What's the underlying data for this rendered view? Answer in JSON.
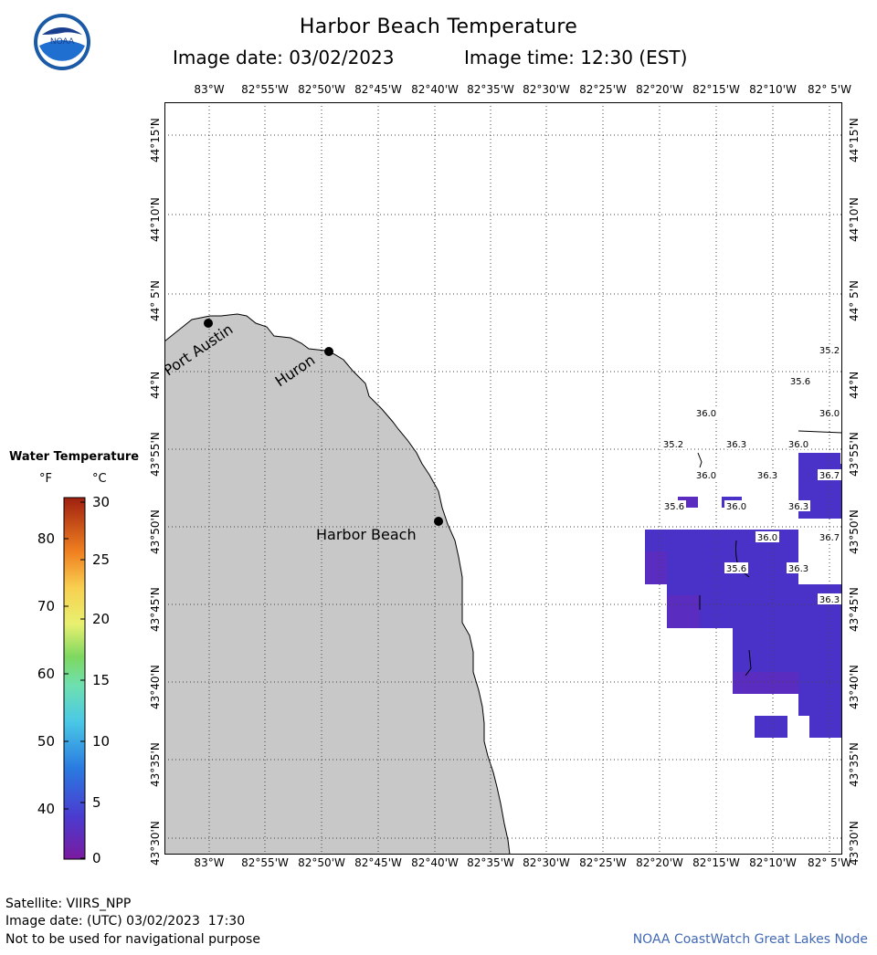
{
  "header": {
    "title": "Harbor Beach Temperature",
    "image_date": "Image date: 03/02/2023",
    "image_time": "Image time: 12:30 (EST)",
    "logo_text": "NOAA"
  },
  "map": {
    "lon_labels": [
      "83°W",
      "82°55'W",
      "82°50'W",
      "82°45'W",
      "82°40'W",
      "82°35'W",
      "82°30'W",
      "82°25'W",
      "82°20'W",
      "82°15'W",
      "82°10'W",
      "82° 5'W"
    ],
    "lat_labels": [
      "43°30'N",
      "43°35'N",
      "43°40'N",
      "43°45'N",
      "43°50'N",
      "43°55'N",
      "44°N",
      "44° 5'N",
      "44°10'N",
      "44°15'N"
    ],
    "places": [
      {
        "name": "Port Austin",
        "lon": -82.987,
        "lat": 44.043
      },
      {
        "name": "Huron",
        "lon": -82.836,
        "lat": 44.015
      },
      {
        "name": "Harbor Beach",
        "lon": -82.648,
        "lat": 43.845
      }
    ],
    "land_color": "#c8c8c8",
    "water_color": "#4a32c8",
    "water_color_alt": "#5a2cc0",
    "temperature_labels_f": [
      {
        "value": "35.2",
        "lon": -82.05,
        "lat": 43.975
      },
      {
        "value": "35.6",
        "lon": -82.08,
        "lat": 43.96
      },
      {
        "value": "36.0",
        "lon": -82.05,
        "lat": 43.936
      },
      {
        "value": "36.0",
        "lon": -82.23,
        "lat": 43.936
      },
      {
        "value": "35.2",
        "lon": -82.315,
        "lat": 43.917
      },
      {
        "value": "36.3",
        "lon": -82.19,
        "lat": 43.917
      },
      {
        "value": "36.0",
        "lon": -82.11,
        "lat": 43.917
      },
      {
        "value": "36.0",
        "lon": -82.26,
        "lat": 43.897
      },
      {
        "value": "36.3",
        "lon": -82.165,
        "lat": 43.897
      },
      {
        "value": "36.7",
        "lon": -82.05,
        "lat": 43.897
      },
      {
        "value": "35.6",
        "lon": -82.3,
        "lat": 43.858
      },
      {
        "value": "36.0",
        "lon": -82.2,
        "lat": 43.858
      },
      {
        "value": "36.3",
        "lon": -82.1,
        "lat": 43.858
      },
      {
        "value": "36.0",
        "lon": -82.165,
        "lat": 43.838
      },
      {
        "value": "36.7",
        "lon": -82.05,
        "lat": 43.838
      },
      {
        "value": "35.6",
        "lon": -82.19,
        "lat": 43.818
      },
      {
        "value": "36.3",
        "lon": -82.1,
        "lat": 43.818
      },
      {
        "value": "36.3",
        "lon": -82.05,
        "lat": 43.799
      }
    ]
  },
  "legend": {
    "title": "Water Temperature",
    "unit_f": "°F",
    "unit_c": "°C",
    "ticks_f": [
      "80",
      "70",
      "60",
      "50",
      "40"
    ],
    "ticks_c": [
      "30",
      "25",
      "20",
      "15",
      "10",
      "5",
      "0"
    ]
  },
  "footer": {
    "satellite": "Satellite: VIIRS_NPP",
    "image_date_utc": "Image date: (UTC) 03/02/2023  17:30",
    "disclaimer": "Not to be used for navigational purpose",
    "credit": "NOAA CoastWatch Great Lakes Node"
  }
}
